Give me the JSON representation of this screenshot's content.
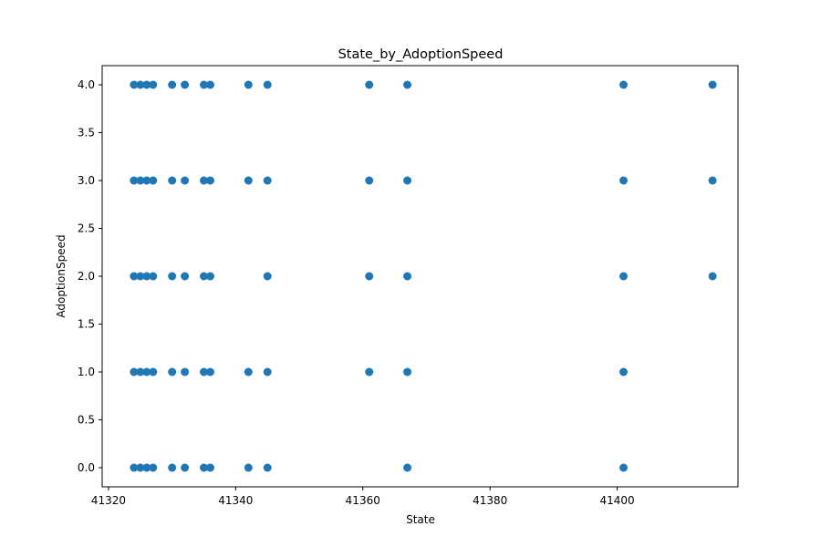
{
  "chart_data": {
    "type": "scatter",
    "title": "State_by_AdoptionSpeed",
    "xlabel": "State",
    "ylabel": "AdoptionSpeed",
    "xlim": [
      41319.0,
      41419.0
    ],
    "ylim": [
      -0.2,
      4.2
    ],
    "xticks": [
      41320,
      41340,
      41360,
      41380,
      41400
    ],
    "yticks": [
      0.0,
      0.5,
      1.0,
      1.5,
      2.0,
      2.5,
      3.0,
      3.5,
      4.0
    ],
    "xtick_labels": [
      "41320",
      "41340",
      "41360",
      "41380",
      "41400"
    ],
    "ytick_labels": [
      "0.0",
      "0.5",
      "1.0",
      "1.5",
      "2.0",
      "2.5",
      "3.0",
      "3.5",
      "4.0"
    ],
    "grid": false,
    "marker_color": "#1f77b4",
    "series": [
      {
        "x": [
          41324,
          41325,
          41326,
          41327,
          41330,
          41332,
          41335,
          41336,
          41342,
          41345,
          41361,
          41367,
          41401,
          41415,
          41324,
          41325,
          41326,
          41327,
          41330,
          41332,
          41335,
          41336,
          41342,
          41345,
          41361,
          41367,
          41401,
          41415,
          41324,
          41325,
          41326,
          41327,
          41330,
          41332,
          41335,
          41336,
          41345,
          41361,
          41367,
          41401,
          41415,
          41324,
          41325,
          41326,
          41327,
          41330,
          41332,
          41335,
          41336,
          41342,
          41345,
          41361,
          41367,
          41401,
          41324,
          41325,
          41326,
          41327,
          41330,
          41332,
          41335,
          41336,
          41342,
          41345,
          41367,
          41401
        ],
        "y": [
          4,
          4,
          4,
          4,
          4,
          4,
          4,
          4,
          4,
          4,
          4,
          4,
          4,
          4,
          3,
          3,
          3,
          3,
          3,
          3,
          3,
          3,
          3,
          3,
          3,
          3,
          3,
          3,
          2,
          2,
          2,
          2,
          2,
          2,
          2,
          2,
          2,
          2,
          2,
          2,
          2,
          1,
          1,
          1,
          1,
          1,
          1,
          1,
          1,
          1,
          1,
          1,
          1,
          1,
          0,
          0,
          0,
          0,
          0,
          0,
          0,
          0,
          0,
          0,
          0,
          0
        ]
      }
    ]
  }
}
